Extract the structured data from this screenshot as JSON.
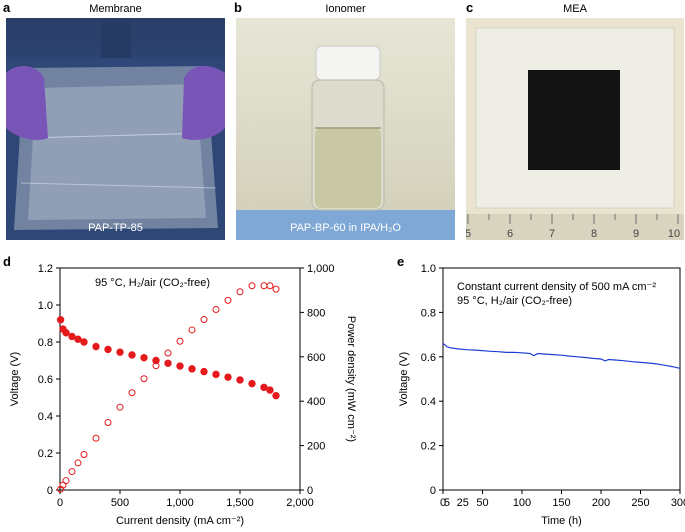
{
  "panels": {
    "a": {
      "letter": "a",
      "title": "Membrane",
      "caption": "PAP-TP-85"
    },
    "b": {
      "letter": "b",
      "title": "Ionomer",
      "caption": "PAP-BP-60 in IPA/H₂O"
    },
    "c": {
      "letter": "c",
      "title": "MEA",
      "ruler_labels": [
        "5",
        "6",
        "7",
        "8",
        "9",
        "10"
      ]
    },
    "d": {
      "letter": "d"
    },
    "e": {
      "letter": "e"
    }
  },
  "chart_data": [
    {
      "panel": "d",
      "type": "scatter",
      "annotation": "95 °C, H₂/air (CO₂-free)",
      "xlabel": "Current density (mA cm⁻²)",
      "ylabel": "Voltage (V)",
      "y2label": "Power density (mW cm⁻²)",
      "xlim": [
        0,
        2000
      ],
      "ylim": [
        0,
        1.2
      ],
      "y2lim": [
        0,
        1000
      ],
      "xticks": [
        "0",
        "500",
        "1,000",
        "1,500",
        "2,000"
      ],
      "yticks": [
        "0",
        "0.2",
        "0.4",
        "0.6",
        "0.8",
        "1.0",
        "1.2"
      ],
      "y2ticks": [
        "0",
        "200",
        "400",
        "600",
        "800",
        "1,000"
      ],
      "series": [
        {
          "axis": "left",
          "marker": "filled-circle",
          "color": "#e41a1c",
          "x": [
            5,
            25,
            50,
            100,
            150,
            200,
            300,
            400,
            500,
            600,
            700,
            800,
            900,
            1000,
            1100,
            1200,
            1300,
            1400,
            1500,
            1600,
            1700,
            1750,
            1800
          ],
          "y": [
            0.92,
            0.87,
            0.85,
            0.83,
            0.815,
            0.8,
            0.775,
            0.76,
            0.745,
            0.73,
            0.715,
            0.7,
            0.685,
            0.67,
            0.655,
            0.64,
            0.625,
            0.61,
            0.595,
            0.575,
            0.555,
            0.54,
            0.51
          ]
        },
        {
          "axis": "right",
          "marker": "open-circle",
          "color": "#e41a1c",
          "x": [
            5,
            25,
            50,
            100,
            150,
            200,
            300,
            400,
            500,
            600,
            700,
            800,
            900,
            1000,
            1100,
            1200,
            1300,
            1400,
            1500,
            1600,
            1700,
            1750,
            1800
          ],
          "y": [
            4,
            22,
            42,
            83,
            122,
            160,
            233,
            304,
            373,
            438,
            501,
            560,
            617,
            670,
            721,
            768,
            813,
            854,
            893,
            920,
            920,
            920,
            905
          ]
        }
      ]
    },
    {
      "panel": "e",
      "type": "line",
      "annotation_lines": [
        "Constant current density of 500 mA cm⁻²",
        "95 °C, H₂/air (CO₂-free)"
      ],
      "xlabel": "Time (h)",
      "ylabel": "Voltage (V)",
      "xlim": [
        0,
        300
      ],
      "ylim": [
        0,
        1.0
      ],
      "xticks": [
        "0",
        "50",
        "100",
        "150",
        "200",
        "250",
        "300"
      ],
      "xticks_minor": [
        "5",
        "25"
      ],
      "yticks": [
        "0",
        "0.2",
        "0.4",
        "0.6",
        "0.8",
        "1.0"
      ],
      "series": [
        {
          "color": "#1f3fd6",
          "x": [
            0,
            2,
            5,
            10,
            20,
            30,
            40,
            50,
            60,
            70,
            80,
            90,
            100,
            110,
            115,
            120,
            130,
            140,
            150,
            160,
            170,
            180,
            190,
            200,
            205,
            210,
            220,
            230,
            240,
            250,
            260,
            270,
            280,
            290,
            300
          ],
          "y": [
            0.66,
            0.655,
            0.645,
            0.64,
            0.635,
            0.632,
            0.63,
            0.628,
            0.625,
            0.623,
            0.62,
            0.62,
            0.618,
            0.615,
            0.605,
            0.615,
            0.612,
            0.61,
            0.607,
            0.603,
            0.6,
            0.597,
            0.593,
            0.59,
            0.582,
            0.588,
            0.585,
            0.582,
            0.578,
            0.575,
            0.572,
            0.568,
            0.562,
            0.556,
            0.548
          ]
        }
      ]
    }
  ]
}
